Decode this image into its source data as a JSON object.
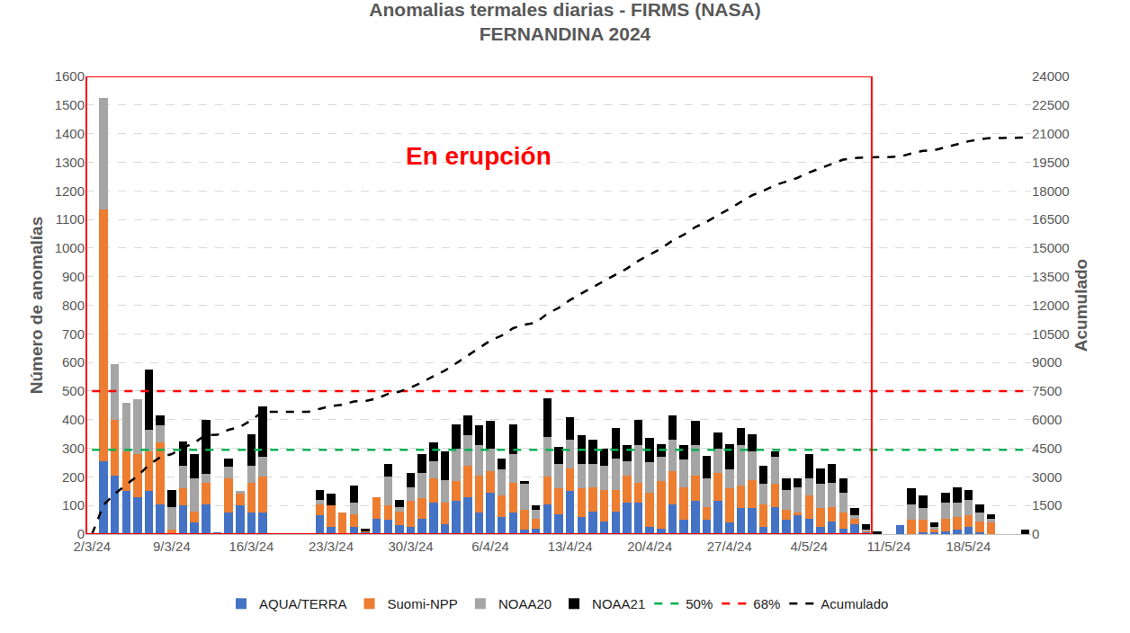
{
  "chart_data": {
    "type": "bar",
    "title": "Anomalias termales diarias - FIRMS (NASA)",
    "subtitle": "FERNANDINA 2024",
    "y_label": "Número de anomalías",
    "y2_label": "Acumulado",
    "stacked": true,
    "grid": true,
    "legend": "bottom",
    "annotations": [
      {
        "text": "En erupción",
        "color": "#ff0000",
        "from": 0,
        "to": 68
      }
    ],
    "categories": [
      "2/3/24",
      null,
      null,
      null,
      null,
      null,
      null,
      "9/3/24",
      null,
      null,
      null,
      null,
      null,
      null,
      "16/3/24",
      null,
      null,
      null,
      null,
      null,
      null,
      "23/3/24",
      null,
      null,
      null,
      null,
      null,
      null,
      "30/3/24",
      null,
      null,
      null,
      null,
      null,
      null,
      "6/4/24",
      null,
      null,
      null,
      null,
      null,
      null,
      "13/4/24",
      null,
      null,
      null,
      null,
      null,
      null,
      "20/4/24",
      null,
      null,
      null,
      null,
      null,
      null,
      "27/4/24",
      null,
      null,
      null,
      null,
      null,
      null,
      "4/5/24",
      null,
      null,
      null,
      null,
      null,
      null,
      "11/5/24",
      null,
      null,
      null,
      null,
      null,
      null,
      "18/5/24",
      null,
      null,
      null,
      null,
      null
    ],
    "ylim": [
      0,
      1600
    ],
    "yticks": [
      0,
      100,
      200,
      300,
      400,
      500,
      600,
      700,
      800,
      900,
      1000,
      1100,
      1200,
      1300,
      1400,
      1500,
      1600
    ],
    "y2lim": [
      0,
      24000
    ],
    "y2ticks": [
      0,
      1500,
      3000,
      4500,
      6000,
      7500,
      9000,
      10500,
      12000,
      13500,
      15000,
      16500,
      18000,
      19500,
      21000,
      22500,
      24000
    ],
    "series": [
      {
        "name": "AQUA/TERRA",
        "type": "bar",
        "color": "#4472c4",
        "values": [
          0,
          255,
          205,
          150,
          130,
          150,
          105,
          0,
          100,
          40,
          105,
          5,
          75,
          100,
          75,
          75,
          0,
          0,
          0,
          0,
          65,
          25,
          0,
          25,
          5,
          55,
          50,
          30,
          25,
          55,
          110,
          35,
          115,
          130,
          75,
          145,
          60,
          75,
          15,
          20,
          105,
          70,
          150,
          60,
          80,
          45,
          80,
          110,
          110,
          25,
          20,
          105,
          50,
          115,
          50,
          115,
          40,
          90,
          90,
          25,
          95,
          50,
          65,
          55,
          25,
          45,
          20,
          35,
          5,
          0,
          0,
          30,
          0,
          5,
          5,
          10,
          15,
          25,
          5,
          0,
          0,
          0,
          0
        ]
      },
      {
        "name": "Suomi-NPP",
        "type": "bar",
        "color": "#ed7d31",
        "values": [
          0,
          880,
          195,
          140,
          150,
          140,
          215,
          15,
          60,
          40,
          75,
          0,
          120,
          40,
          105,
          125,
          0,
          0,
          0,
          0,
          40,
          75,
          75,
          45,
          5,
          75,
          50,
          50,
          90,
          70,
          85,
          75,
          70,
          110,
          130,
          75,
          75,
          105,
          70,
          35,
          95,
          90,
          80,
          100,
          85,
          110,
          75,
          95,
          70,
          120,
          165,
          115,
          115,
          90,
          45,
          100,
          120,
          80,
          100,
          80,
          80,
          35,
          10,
          80,
          65,
          50,
          55,
          20,
          5,
          0,
          0,
          0,
          50,
          45,
          10,
          45,
          45,
          40,
          40,
          40,
          0,
          0,
          0
        ]
      },
      {
        "name": "NOAA20",
        "type": "bar",
        "color": "#a5a5a5",
        "values": [
          0,
          390,
          195,
          170,
          190,
          75,
          60,
          80,
          80,
          115,
          30,
          0,
          40,
          10,
          60,
          70,
          0,
          0,
          0,
          0,
          15,
          0,
          0,
          40,
          0,
          0,
          100,
          15,
          50,
          90,
          60,
          80,
          115,
          105,
          105,
          80,
          90,
          100,
          90,
          30,
          140,
          85,
          100,
          85,
          80,
          85,
          110,
          50,
          130,
          105,
          85,
          110,
          95,
          105,
          100,
          85,
          65,
          140,
          100,
          70,
          95,
          70,
          90,
          60,
          85,
          85,
          70,
          10,
          5,
          0,
          0,
          0,
          55,
          40,
          10,
          55,
          50,
          55,
          30,
          15,
          0,
          0,
          0
        ]
      },
      {
        "name": "NOAA21",
        "type": "bar",
        "color": "#000000",
        "values": [
          0,
          0,
          0,
          0,
          0,
          210,
          35,
          60,
          85,
          85,
          190,
          0,
          30,
          0,
          110,
          175,
          0,
          0,
          0,
          0,
          35,
          40,
          0,
          60,
          10,
          0,
          45,
          25,
          50,
          65,
          65,
          100,
          85,
          70,
          70,
          95,
          40,
          105,
          10,
          15,
          135,
          60,
          80,
          100,
          85,
          60,
          105,
          55,
          90,
          85,
          45,
          85,
          50,
          85,
          80,
          55,
          90,
          60,
          60,
          65,
          20,
          40,
          30,
          85,
          55,
          65,
          50,
          25,
          20,
          10,
          0,
          0,
          55,
          45,
          15,
          35,
          55,
          35,
          30,
          15,
          0,
          0,
          15
        ]
      },
      {
        "name": "50%",
        "type": "line",
        "color": "#00b050",
        "line_style": "dash",
        "values": [
          295,
          295,
          295,
          295,
          295,
          295,
          295,
          295,
          295,
          295,
          295,
          295,
          295,
          295,
          295,
          295,
          295,
          295,
          295,
          295,
          295,
          295,
          295,
          295,
          295,
          295,
          295,
          295,
          295,
          295,
          295,
          295,
          295,
          295,
          295,
          295,
          295,
          295,
          295,
          295,
          295,
          295,
          295,
          295,
          295,
          295,
          295,
          295,
          295,
          295,
          295,
          295,
          295,
          295,
          295,
          295,
          295,
          295,
          295,
          295,
          295,
          295,
          295,
          295,
          295,
          295,
          295,
          295,
          295,
          295,
          295,
          295,
          295,
          295,
          295,
          295,
          295,
          295,
          295,
          295,
          295,
          295,
          295
        ]
      },
      {
        "name": "68%",
        "type": "line",
        "color": "#ff0000",
        "line_style": "dash",
        "values": [
          500,
          500,
          500,
          500,
          500,
          500,
          500,
          500,
          500,
          500,
          500,
          500,
          500,
          500,
          500,
          500,
          500,
          500,
          500,
          500,
          500,
          500,
          500,
          500,
          500,
          500,
          500,
          500,
          500,
          500,
          500,
          500,
          500,
          500,
          500,
          500,
          500,
          500,
          500,
          500,
          500,
          500,
          500,
          500,
          500,
          500,
          500,
          500,
          500,
          500,
          500,
          500,
          500,
          500,
          500,
          500,
          500,
          500,
          500,
          500,
          500,
          500,
          500,
          500,
          500,
          500,
          500,
          500,
          500,
          500,
          500,
          500,
          500,
          500,
          500,
          500,
          500,
          500,
          500,
          500,
          500,
          500,
          500
        ]
      },
      {
        "name": "Acumulado",
        "type": "line",
        "color": "#000000",
        "line_style": "dash",
        "axis": "y2",
        "values": [
          0,
          1525,
          2120,
          2580,
          3050,
          3625,
          4040,
          4195,
          4520,
          4800,
          5200,
          5205,
          5470,
          5620,
          5970,
          6415,
          6415,
          6415,
          6415,
          6415,
          6570,
          6710,
          6785,
          6955,
          6975,
          7105,
          7350,
          7470,
          7685,
          7965,
          8285,
          8575,
          8960,
          9375,
          9755,
          10150,
          10415,
          10800,
          10985,
          11085,
          11560,
          11865,
          12275,
          12620,
          12950,
          13250,
          13620,
          13930,
          14330,
          14665,
          14980,
          15395,
          15705,
          16100,
          16375,
          16730,
          17045,
          17415,
          17765,
          18005,
          18295,
          18490,
          18685,
          18965,
          19195,
          19440,
          19635,
          19725,
          19760,
          19770,
          19770,
          19800,
          19960,
          20095,
          20135,
          20280,
          20445,
          20600,
          20705,
          20775,
          20775,
          20775,
          20790
        ]
      }
    ]
  }
}
